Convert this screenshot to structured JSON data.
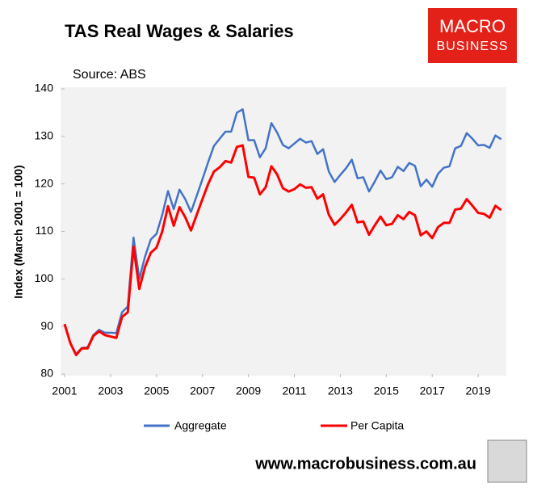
{
  "chart_data": {
    "type": "line",
    "title": "TAS Real Wages & Salaries",
    "subtitle": "Source: ABS",
    "y_label": "Index (March 2001 = 100)",
    "x": [
      2001.0,
      2001.25,
      2001.5,
      2001.75,
      2002.0,
      2002.25,
      2002.5,
      2002.75,
      2003.0,
      2003.25,
      2003.5,
      2003.75,
      2004.0,
      2004.25,
      2004.5,
      2004.75,
      2005.0,
      2005.25,
      2005.5,
      2005.75,
      2006.0,
      2006.25,
      2006.5,
      2006.75,
      2007.0,
      2007.25,
      2007.5,
      2007.75,
      2008.0,
      2008.25,
      2008.5,
      2008.75,
      2009.0,
      2009.25,
      2009.5,
      2009.75,
      2010.0,
      2010.25,
      2010.5,
      2010.75,
      2011.0,
      2011.25,
      2011.5,
      2011.75,
      2012.0,
      2012.25,
      2012.5,
      2012.75,
      2013.0,
      2013.25,
      2013.5,
      2013.75,
      2014.0,
      2014.25,
      2014.5,
      2014.75,
      2015.0,
      2015.25,
      2015.5,
      2015.75,
      2016.0,
      2016.25,
      2016.5,
      2016.75,
      2017.0,
      2017.25,
      2017.5,
      2017.75,
      2018.0,
      2018.25,
      2018.5,
      2018.75,
      2019.0,
      2019.25,
      2019.5,
      2019.75,
      2020.0
    ],
    "series": [
      {
        "name": "Aggregate",
        "color": "#4472c4",
        "values": [
          90.5,
          86.5,
          84.2,
          85.5,
          85.6,
          88.2,
          89.3,
          88.7,
          88.7,
          88.6,
          93.0,
          94.2,
          108.7,
          100.0,
          104.7,
          108.3,
          109.5,
          113.5,
          118.5,
          114.7,
          118.8,
          116.8,
          114.1,
          117.5,
          121.0,
          124.6,
          128.0,
          129.5,
          131.0,
          131.0,
          135.0,
          135.7,
          129.2,
          129.2,
          125.6,
          127.5,
          132.8,
          130.8,
          128.2,
          127.5,
          128.5,
          129.5,
          128.7,
          129.0,
          126.3,
          127.3,
          122.6,
          120.4,
          121.9,
          123.3,
          125.1,
          121.2,
          121.4,
          118.4,
          120.5,
          122.8,
          121.0,
          121.4,
          123.6,
          122.7,
          124.4,
          123.8,
          119.5,
          120.9,
          119.4,
          122.1,
          123.4,
          123.7,
          127.5,
          128.0,
          130.7,
          129.5,
          128.1,
          128.2,
          127.6,
          130.2,
          129.4
        ]
      },
      {
        "name": "Per Capita",
        "color": "#ff0000",
        "values": [
          90.5,
          86.5,
          84.0,
          85.4,
          85.4,
          88.0,
          89.0,
          88.2,
          87.9,
          87.6,
          92.0,
          93.0,
          106.8,
          97.9,
          102.5,
          105.5,
          106.6,
          110.0,
          115.3,
          111.2,
          115.1,
          113.0,
          110.2,
          113.5,
          116.8,
          120.0,
          122.6,
          123.5,
          124.8,
          124.5,
          127.8,
          128.1,
          121.5,
          121.3,
          117.8,
          119.3,
          123.7,
          122.0,
          119.1,
          118.4,
          118.9,
          119.9,
          119.2,
          119.3,
          116.9,
          117.8,
          113.5,
          111.4,
          112.6,
          114.0,
          115.6,
          111.9,
          112.1,
          109.3,
          111.3,
          113.1,
          111.3,
          111.6,
          113.4,
          112.6,
          114.1,
          113.4,
          109.2,
          110.0,
          108.6,
          110.9,
          111.8,
          111.8,
          114.6,
          114.8,
          116.8,
          115.4,
          113.9,
          113.7,
          112.9,
          115.4,
          114.5
        ]
      }
    ],
    "xlim": [
      2001,
      2020.05
    ],
    "ylim": [
      80,
      140
    ],
    "xticks": [
      2001,
      2003,
      2005,
      2007,
      2009,
      2011,
      2013,
      2015,
      2017,
      2019
    ],
    "yticks": [
      80,
      90,
      100,
      110,
      120,
      130,
      140
    ],
    "grid": false
  },
  "logo": [
    "MACRO",
    "BUSINESS"
  ],
  "footer": "www.macrobusiness.com.au"
}
